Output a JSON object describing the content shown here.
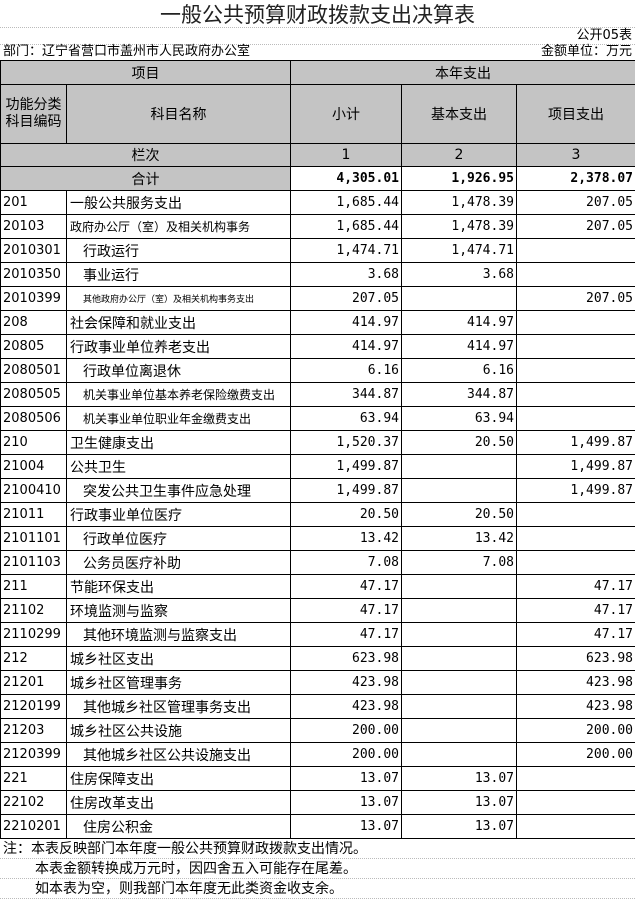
{
  "title": "一般公共预算财政拨款支出决算表",
  "table_no": "公开05表",
  "department": "部门：辽宁省营口市盖州市人民政府办公室",
  "unit": "金额单位：万元",
  "header": {
    "item": "项目",
    "year_expense": "本年支出",
    "code": "功能分类科目编码",
    "name": "科目名称",
    "subtotal": "小计",
    "basic": "基本支出",
    "project": "项目支出",
    "col_index_label": "栏次",
    "col_nums": [
      "1",
      "2",
      "3"
    ],
    "total_label": "合计",
    "totals": [
      "4,305.01",
      "1,926.95",
      "2,378.07"
    ]
  },
  "rows": [
    {
      "code": "201",
      "name": "一般公共服务支出",
      "indent": 0,
      "v": [
        "1,685.44",
        "1,478.39",
        "207.05"
      ]
    },
    {
      "code": "20103",
      "name": "政府办公厅（室）及相关机构事务",
      "indent": 0,
      "small": "mid",
      "v": [
        "1,685.44",
        "1,478.39",
        "207.05"
      ]
    },
    {
      "code": "2010301",
      "name": "行政运行",
      "indent": 1,
      "v": [
        "1,474.71",
        "1,474.71",
        ""
      ]
    },
    {
      "code": "2010350",
      "name": "事业运行",
      "indent": 1,
      "v": [
        "3.68",
        "3.68",
        ""
      ]
    },
    {
      "code": "2010399",
      "name": "其他政府办公厅（室）及相关机构事务支出",
      "indent": 1,
      "small": "tiny",
      "v": [
        "207.05",
        "",
        "207.05"
      ]
    },
    {
      "code": "208",
      "name": "社会保障和就业支出",
      "indent": 0,
      "v": [
        "414.97",
        "414.97",
        ""
      ]
    },
    {
      "code": "20805",
      "name": "行政事业单位养老支出",
      "indent": 0,
      "v": [
        "414.97",
        "414.97",
        ""
      ]
    },
    {
      "code": "2080501",
      "name": "行政单位离退休",
      "indent": 1,
      "v": [
        "6.16",
        "6.16",
        ""
      ]
    },
    {
      "code": "2080505",
      "name": "机关事业单位基本养老保险缴费支出",
      "indent": 1,
      "small": "mid",
      "v": [
        "344.87",
        "344.87",
        ""
      ]
    },
    {
      "code": "2080506",
      "name": "机关事业单位职业年金缴费支出",
      "indent": 1,
      "small": "mid",
      "v": [
        "63.94",
        "63.94",
        ""
      ]
    },
    {
      "code": "210",
      "name": "卫生健康支出",
      "indent": 0,
      "v": [
        "1,520.37",
        "20.50",
        "1,499.87"
      ]
    },
    {
      "code": "21004",
      "name": "公共卫生",
      "indent": 0,
      "v": [
        "1,499.87",
        "",
        "1,499.87"
      ]
    },
    {
      "code": "2100410",
      "name": "突发公共卫生事件应急处理",
      "indent": 1,
      "v": [
        "1,499.87",
        "",
        "1,499.87"
      ]
    },
    {
      "code": "21011",
      "name": "行政事业单位医疗",
      "indent": 0,
      "v": [
        "20.50",
        "20.50",
        ""
      ]
    },
    {
      "code": "2101101",
      "name": "行政单位医疗",
      "indent": 1,
      "v": [
        "13.42",
        "13.42",
        ""
      ]
    },
    {
      "code": "2101103",
      "name": "公务员医疗补助",
      "indent": 1,
      "v": [
        "7.08",
        "7.08",
        ""
      ]
    },
    {
      "code": "211",
      "name": "节能环保支出",
      "indent": 0,
      "v": [
        "47.17",
        "",
        "47.17"
      ]
    },
    {
      "code": "21102",
      "name": "环境监测与监察",
      "indent": 0,
      "v": [
        "47.17",
        "",
        "47.17"
      ]
    },
    {
      "code": "2110299",
      "name": "其他环境监测与监察支出",
      "indent": 1,
      "v": [
        "47.17",
        "",
        "47.17"
      ]
    },
    {
      "code": "212",
      "name": "城乡社区支出",
      "indent": 0,
      "v": [
        "623.98",
        "",
        "623.98"
      ]
    },
    {
      "code": "21201",
      "name": "城乡社区管理事务",
      "indent": 0,
      "v": [
        "423.98",
        "",
        "423.98"
      ]
    },
    {
      "code": "2120199",
      "name": "其他城乡社区管理事务支出",
      "indent": 1,
      "v": [
        "423.98",
        "",
        "423.98"
      ]
    },
    {
      "code": "21203",
      "name": "城乡社区公共设施",
      "indent": 0,
      "v": [
        "200.00",
        "",
        "200.00"
      ]
    },
    {
      "code": "2120399",
      "name": "其他城乡社区公共设施支出",
      "indent": 1,
      "v": [
        "200.00",
        "",
        "200.00"
      ]
    },
    {
      "code": "221",
      "name": "住房保障支出",
      "indent": 0,
      "v": [
        "13.07",
        "13.07",
        ""
      ]
    },
    {
      "code": "22102",
      "name": "住房改革支出",
      "indent": 0,
      "v": [
        "13.07",
        "13.07",
        ""
      ]
    },
    {
      "code": "2210201",
      "name": "住房公积金",
      "indent": 1,
      "v": [
        "13.07",
        "13.07",
        ""
      ]
    }
  ],
  "notes": [
    "注：本表反映部门本年度一般公共预算财政拨款支出情况。",
    "本表金额转换成万元时，因四舍五入可能存在尾差。",
    "如本表为空，则我部门本年度无此类资金收支余。"
  ]
}
